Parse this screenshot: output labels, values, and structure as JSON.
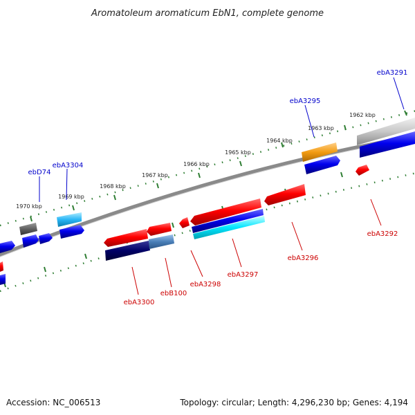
{
  "title": "Aromatoleum aromaticum EbN1, complete genome",
  "footer": {
    "accession": "Accession: NC_006513",
    "summary": "Topology: circular; Length: 4,296,230 bp; Genes: 4,194"
  },
  "scale": {
    "unit": "kbp",
    "ticks": [
      "1962 kbp",
      "1963 kbp",
      "1964 kbp",
      "1965 kbp",
      "1966 kbp",
      "1967 kbp",
      "1968 kbp",
      "1969 kbp",
      "1970 kbp"
    ]
  },
  "colors": {
    "forward_label": "#0000cc",
    "reverse_label": "#cc0000",
    "backbone": "#808080",
    "tick": "#2e7d32"
  },
  "genes": [
    {
      "label": "ebA3291",
      "strand": "forward",
      "color": "#c8c8c8"
    },
    {
      "label": "ebA3295",
      "strand": "forward",
      "color": "#f39c12"
    },
    {
      "label": "ebA3304",
      "strand": "forward",
      "color": "#29b6f6"
    },
    {
      "label": "ebD74",
      "strand": "forward",
      "color": "#616161"
    },
    {
      "label": "ebA3292",
      "strand": "reverse",
      "color": "#ff0000"
    },
    {
      "label": "ebA3296",
      "strand": "reverse",
      "color": "#ff0000"
    },
    {
      "label": "ebA3297",
      "strand": "reverse",
      "color": "#ff0000"
    },
    {
      "label": "ebA3298",
      "strand": "reverse",
      "color": "#ff0000"
    },
    {
      "label": "ebB100",
      "strand": "reverse",
      "color": "#4a7fb8"
    },
    {
      "label": "ebA3300",
      "strand": "reverse",
      "color": "#ff0000"
    }
  ]
}
